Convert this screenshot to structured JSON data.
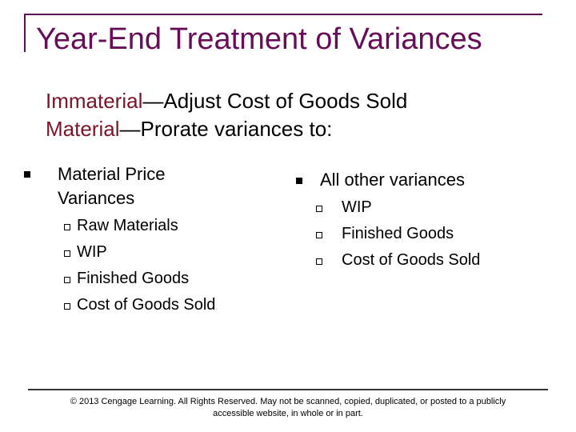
{
  "header": {
    "title": "Year-End Treatment of Variances"
  },
  "intro": [
    {
      "term": "Immaterial",
      "text": "—Adjust Cost of Goods Sold"
    },
    {
      "term": "Material",
      "text": "—Prorate variances to:"
    }
  ],
  "columns": [
    {
      "label": "Material Price Variances",
      "items": [
        "Raw Materials",
        "WIP",
        "Finished Goods",
        "Cost of Goods Sold"
      ]
    },
    {
      "label": "All other variances",
      "items": [
        "WIP",
        "Finished Goods",
        "Cost of Goods Sold"
      ]
    }
  ],
  "footer": {
    "lines": [
      "© 2013 Cengage Learning.  All Rights Reserved.  May not be scanned, copied, duplicated, or posted to a publicly",
      "accessible website, in whole or in part."
    ]
  }
}
